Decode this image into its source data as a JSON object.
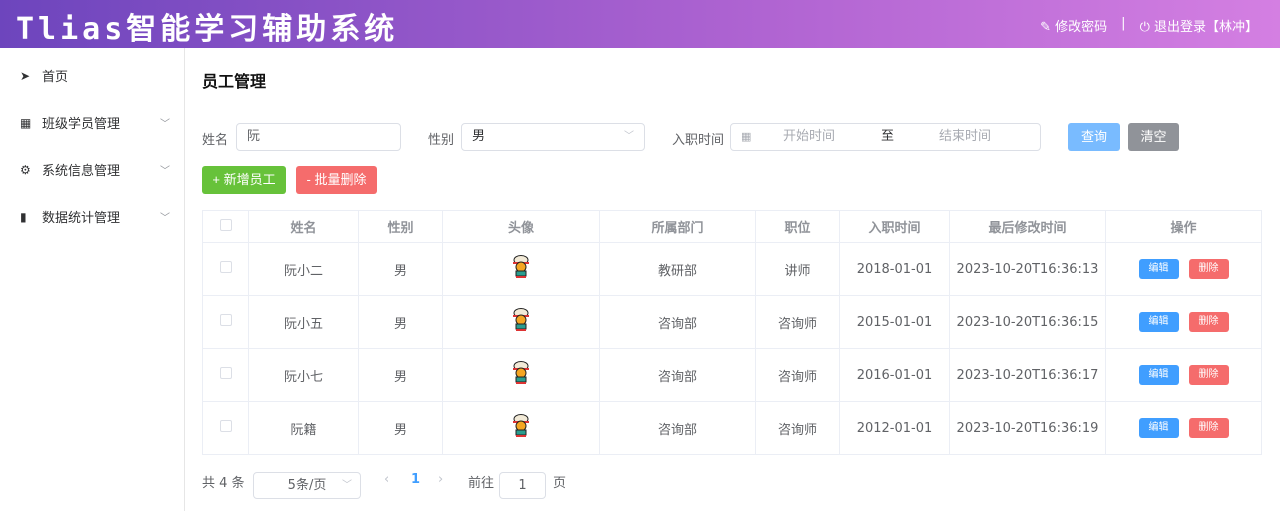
{
  "header": {
    "title": "Tlias智能学习辅助系统",
    "change_password": "修改密码",
    "separator": "|",
    "logout": "退出登录【林冲】"
  },
  "sidebar": {
    "items": [
      {
        "label": "首页",
        "icon": "paper-plane-icon"
      },
      {
        "label": "班级学员管理",
        "icon": "grid-icon"
      },
      {
        "label": "系统信息管理",
        "icon": "gear-icon"
      },
      {
        "label": "数据统计管理",
        "icon": "bar-chart-icon"
      }
    ]
  },
  "page": {
    "title": "员工管理"
  },
  "search": {
    "name_label": "姓名",
    "name_value": "阮",
    "gender_label": "性别",
    "gender_value": "男",
    "date_label": "入职时间",
    "start_placeholder": "开始时间",
    "date_sep": "至",
    "end_placeholder": "结束时间",
    "query": "查询",
    "clear": "清空"
  },
  "actions": {
    "add": "+ 新增员工",
    "batch_delete": "- 批量删除"
  },
  "table": {
    "headers": [
      "姓名",
      "性别",
      "头像",
      "所属部门",
      "职位",
      "入职时间",
      "最后修改时间",
      "操作"
    ],
    "rows": [
      {
        "name": "阮小二",
        "gender": "男",
        "dept": "教研部",
        "job": "讲师",
        "entry": "2018-01-01",
        "updated": "2023-10-20T16:36:13"
      },
      {
        "name": "阮小五",
        "gender": "男",
        "dept": "咨询部",
        "job": "咨询师",
        "entry": "2015-01-01",
        "updated": "2023-10-20T16:36:15"
      },
      {
        "name": "阮小七",
        "gender": "男",
        "dept": "咨询部",
        "job": "咨询师",
        "entry": "2016-01-01",
        "updated": "2023-10-20T16:36:17"
      },
      {
        "name": "阮籍",
        "gender": "男",
        "dept": "咨询部",
        "job": "咨询师",
        "entry": "2012-01-01",
        "updated": "2023-10-20T16:36:19"
      }
    ],
    "edit": "编辑",
    "delete": "删除"
  },
  "pagination": {
    "total": "共 4 条",
    "page_size": "5条/页",
    "current": "1",
    "goto_label": "前往",
    "goto_value": "1",
    "page_suffix": "页"
  }
}
